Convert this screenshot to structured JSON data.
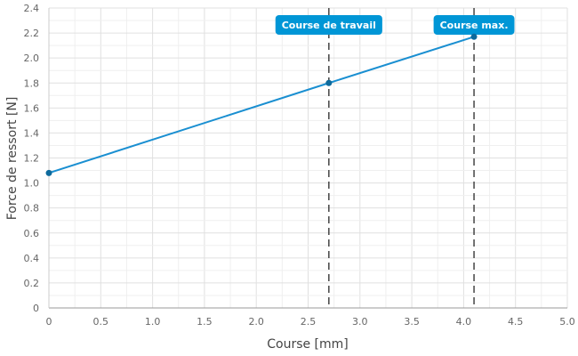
{
  "chart_data": {
    "type": "line",
    "xlabel": "Course [mm]",
    "ylabel": "Force de ressort [N]",
    "xlim": [
      0,
      5.0
    ],
    "ylim": [
      0,
      2.4
    ],
    "grid": true,
    "x_ticks": [
      "0",
      "0.5",
      "1.0",
      "1.5",
      "2.0",
      "2.5",
      "3.0",
      "3.5",
      "4.0",
      "4.5",
      "5.0"
    ],
    "y_ticks": [
      "0",
      "0.2",
      "0.4",
      "0.6",
      "0.8",
      "1.0",
      "1.2",
      "1.4",
      "1.6",
      "1.8",
      "2.0",
      "2.2",
      "2.4"
    ],
    "series": [
      {
        "x": [
          0,
          2.7,
          4.1
        ],
        "y": [
          1.08,
          1.8,
          2.17
        ]
      }
    ],
    "markers": [
      {
        "label": "Course de travail",
        "x": 2.7
      },
      {
        "label": "Course max.",
        "x": 4.1
      }
    ],
    "colors": {
      "line": "#1a8fd1",
      "point": "#0e6a9c",
      "badge": "#0096d6",
      "marker_line": "#444444",
      "grid": "#e0e0e0"
    }
  }
}
